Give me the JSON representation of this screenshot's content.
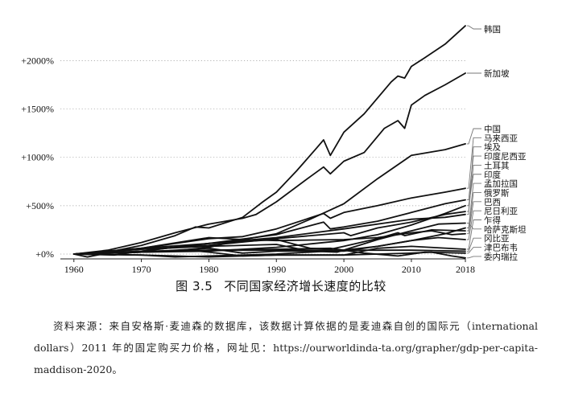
{
  "chart_data": {
    "type": "line",
    "title": "",
    "xlabel": "",
    "ylabel": "",
    "x_ticks": [
      "1960",
      "1970",
      "1980",
      "1990",
      "2000",
      "2010",
      "2018"
    ],
    "y_ticks": [
      "+0%",
      "+500%",
      "+1000%",
      "+1500%",
      "+2000%"
    ],
    "y_tick_values": [
      0,
      500,
      1000,
      1500,
      2000
    ],
    "xlim": [
      1958,
      2018
    ],
    "ylim": [
      -30,
      2400
    ],
    "grid": "horizontal dotted",
    "legend": "right, labels at line ends",
    "series": [
      {
        "name": "韩国",
        "points": [
          [
            1960,
            0
          ],
          [
            1965,
            20
          ],
          [
            1970,
            90
          ],
          [
            1975,
            190
          ],
          [
            1978,
            280
          ],
          [
            1980,
            270
          ],
          [
            1985,
            380
          ],
          [
            1988,
            540
          ],
          [
            1990,
            640
          ],
          [
            1993,
            860
          ],
          [
            1996,
            1100
          ],
          [
            1997,
            1180
          ],
          [
            1998,
            1020
          ],
          [
            2000,
            1260
          ],
          [
            2003,
            1450
          ],
          [
            2007,
            1780
          ],
          [
            2008,
            1840
          ],
          [
            2009,
            1820
          ],
          [
            2010,
            1940
          ],
          [
            2012,
            2030
          ],
          [
            2015,
            2170
          ],
          [
            2018,
            2360
          ]
        ]
      },
      {
        "name": "新加坡",
        "points": [
          [
            1960,
            0
          ],
          [
            1965,
            40
          ],
          [
            1970,
            120
          ],
          [
            1975,
            220
          ],
          [
            1980,
            310
          ],
          [
            1985,
            370
          ],
          [
            1987,
            410
          ],
          [
            1990,
            540
          ],
          [
            1995,
            800
          ],
          [
            1997,
            900
          ],
          [
            1998,
            830
          ],
          [
            2000,
            960
          ],
          [
            2003,
            1050
          ],
          [
            2006,
            1300
          ],
          [
            2008,
            1380
          ],
          [
            2009,
            1300
          ],
          [
            2010,
            1540
          ],
          [
            2012,
            1640
          ],
          [
            2015,
            1750
          ],
          [
            2018,
            1870
          ]
        ]
      },
      {
        "name": "中国",
        "points": [
          [
            1960,
            0
          ],
          [
            1962,
            -30
          ],
          [
            1965,
            10
          ],
          [
            1970,
            20
          ],
          [
            1976,
            40
          ],
          [
            1980,
            70
          ],
          [
            1985,
            150
          ],
          [
            1990,
            210
          ],
          [
            1995,
            360
          ],
          [
            2000,
            520
          ],
          [
            2005,
            780
          ],
          [
            2010,
            1020
          ],
          [
            2015,
            1080
          ],
          [
            2018,
            1140
          ]
        ]
      },
      {
        "name": "马来西亚",
        "points": [
          [
            1960,
            0
          ],
          [
            1970,
            60
          ],
          [
            1980,
            160
          ],
          [
            1985,
            180
          ],
          [
            1990,
            260
          ],
          [
            1997,
            420
          ],
          [
            1998,
            370
          ],
          [
            2000,
            430
          ],
          [
            2005,
            500
          ],
          [
            2010,
            580
          ],
          [
            2015,
            640
          ],
          [
            2018,
            680
          ]
        ]
      },
      {
        "name": "埃及",
        "points": [
          [
            1960,
            0
          ],
          [
            1970,
            30
          ],
          [
            1980,
            110
          ],
          [
            1990,
            170
          ],
          [
            2000,
            260
          ],
          [
            2010,
            360
          ],
          [
            2015,
            380
          ],
          [
            2018,
            410
          ]
        ]
      },
      {
        "name": "印度尼西亚",
        "points": [
          [
            1960,
            0
          ],
          [
            1966,
            -10
          ],
          [
            1970,
            30
          ],
          [
            1980,
            110
          ],
          [
            1990,
            200
          ],
          [
            1997,
            330
          ],
          [
            1998,
            260
          ],
          [
            2000,
            280
          ],
          [
            2005,
            340
          ],
          [
            2010,
            430
          ],
          [
            2015,
            520
          ],
          [
            2018,
            560
          ]
        ]
      },
      {
        "name": "土耳其",
        "points": [
          [
            1960,
            0
          ],
          [
            1970,
            50
          ],
          [
            1980,
            90
          ],
          [
            1990,
            160
          ],
          [
            2000,
            220
          ],
          [
            2001,
            190
          ],
          [
            2005,
            270
          ],
          [
            2010,
            330
          ],
          [
            2015,
            410
          ],
          [
            2018,
            440
          ]
        ]
      },
      {
        "name": "印度",
        "points": [
          [
            1960,
            0
          ],
          [
            1970,
            20
          ],
          [
            1980,
            30
          ],
          [
            1990,
            70
          ],
          [
            2000,
            140
          ],
          [
            2005,
            200
          ],
          [
            2010,
            300
          ],
          [
            2015,
            420
          ],
          [
            2018,
            500
          ]
        ]
      },
      {
        "name": "孟加拉国",
        "points": [
          [
            1960,
            0
          ],
          [
            1970,
            -10
          ],
          [
            1975,
            -30
          ],
          [
            1980,
            -20
          ],
          [
            1990,
            0
          ],
          [
            2000,
            40
          ],
          [
            2005,
            80
          ],
          [
            2010,
            140
          ],
          [
            2015,
            210
          ],
          [
            2018,
            270
          ]
        ]
      },
      {
        "name": "俄罗斯",
        "points": [
          [
            1960,
            0
          ],
          [
            1970,
            60
          ],
          [
            1980,
            110
          ],
          [
            1990,
            150
          ],
          [
            1995,
            60
          ],
          [
            1998,
            50
          ],
          [
            2000,
            80
          ],
          [
            2005,
            160
          ],
          [
            2008,
            220
          ],
          [
            2009,
            190
          ],
          [
            2013,
            250
          ],
          [
            2018,
            240
          ]
        ]
      },
      {
        "name": "巴西",
        "points": [
          [
            1960,
            0
          ],
          [
            1970,
            60
          ],
          [
            1980,
            170
          ],
          [
            1985,
            150
          ],
          [
            1990,
            140
          ],
          [
            2000,
            150
          ],
          [
            2005,
            170
          ],
          [
            2010,
            220
          ],
          [
            2013,
            240
          ],
          [
            2016,
            200
          ],
          [
            2018,
            210
          ]
        ]
      },
      {
        "name": "尼日利亚",
        "points": [
          [
            1960,
            0
          ],
          [
            1970,
            20
          ],
          [
            1980,
            60
          ],
          [
            1985,
            10
          ],
          [
            1990,
            30
          ],
          [
            2000,
            30
          ],
          [
            2005,
            80
          ],
          [
            2010,
            140
          ],
          [
            2014,
            170
          ],
          [
            2018,
            150
          ]
        ]
      },
      {
        "name": "乍得",
        "points": [
          [
            1960,
            0
          ],
          [
            1970,
            -10
          ],
          [
            1980,
            -30
          ],
          [
            1990,
            -10
          ],
          [
            2000,
            -10
          ],
          [
            2005,
            60
          ],
          [
            2010,
            80
          ],
          [
            2018,
            50
          ]
        ]
      },
      {
        "name": "哈萨克斯坦",
        "points": [
          [
            1960,
            0
          ],
          [
            1970,
            50
          ],
          [
            1980,
            80
          ],
          [
            1990,
            100
          ],
          [
            1995,
            30
          ],
          [
            1999,
            20
          ],
          [
            2005,
            150
          ],
          [
            2010,
            240
          ],
          [
            2014,
            310
          ],
          [
            2018,
            320
          ]
        ]
      },
      {
        "name": "冈比亚",
        "points": [
          [
            1960,
            0
          ],
          [
            1970,
            20
          ],
          [
            1980,
            40
          ],
          [
            1990,
            40
          ],
          [
            2000,
            40
          ],
          [
            2010,
            40
          ],
          [
            2018,
            30
          ]
        ]
      },
      {
        "name": "津巴布韦",
        "points": [
          [
            1960,
            0
          ],
          [
            1970,
            30
          ],
          [
            1980,
            40
          ],
          [
            1990,
            50
          ],
          [
            1998,
            60
          ],
          [
            2003,
            10
          ],
          [
            2008,
            -20
          ],
          [
            2012,
            20
          ],
          [
            2018,
            10
          ]
        ]
      },
      {
        "name": "委内瑞拉",
        "points": [
          [
            1960,
            0
          ],
          [
            1970,
            20
          ],
          [
            1977,
            40
          ],
          [
            1980,
            20
          ],
          [
            1985,
            -20
          ],
          [
            1990,
            -10
          ],
          [
            2000,
            -10
          ],
          [
            2005,
            0
          ],
          [
            2010,
            10
          ],
          [
            2013,
            20
          ],
          [
            2016,
            -20
          ],
          [
            2018,
            -40
          ]
        ]
      }
    ]
  },
  "caption": {
    "number": "图 3.5",
    "title": "不同国家经济增长速度的比较"
  },
  "note": "资料来源：来自安格斯·麦迪森的数据库，该数据计算依据的是麦迪森自创的国际元（international dollars）2011 年的固定购买力价格，网址见：https://ourworldinda-ta.org/grapher/gdp-per-capita-maddison-2020。"
}
